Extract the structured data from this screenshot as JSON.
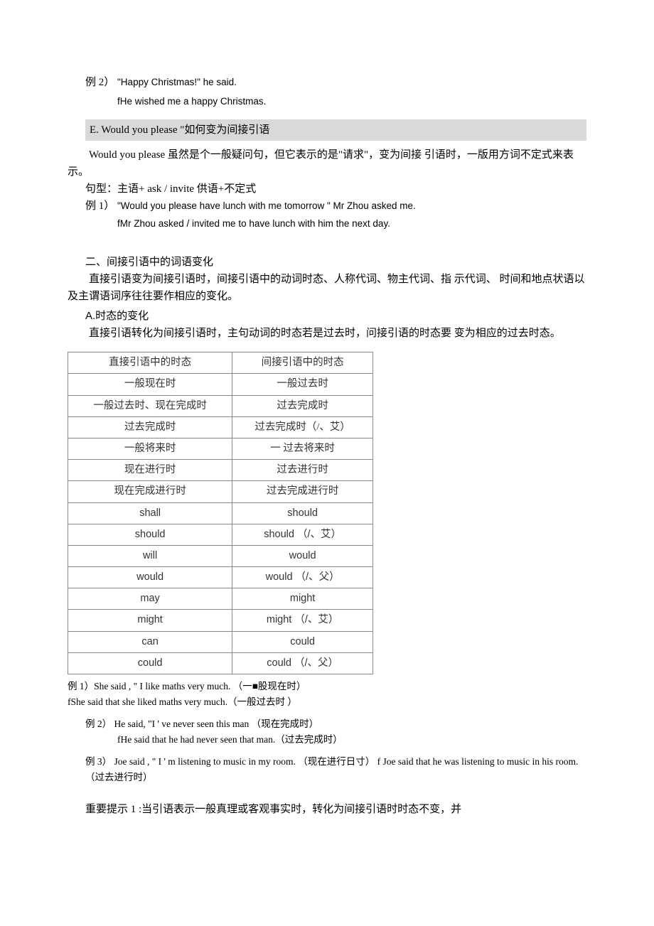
{
  "ex2_label": "例  2）",
  "ex2_en": "\"Happy Christmas!\" he said.",
  "ex2_sub": "fHe wished me a happy Christmas.",
  "sectionE": "E. Would you please  \"如何变为间接引语",
  "E_p1": "Would you please  虽然是个一般疑问句，但它表示的是\"请求\"，变为间接 引语时，一版用方词不定式来表示。",
  "E_p2": "句型：主语+ ask / invite 供语+不定式",
  "E_ex1_label": "例  1）",
  "E_ex1_en": "\"Would you please have lunch with me tomorrow \" Mr Zhou asked me.",
  "E_ex1_sub": "fMr Zhou asked / invited me to have lunch with him the next day.",
  "sec2_title": "二、间接引语中的词语变化",
  "sec2_p1": "直接引语变为间接引语时，间接引语中的动词时态、人称代词、物主代词、指 示代词、 时间和地点状语以及主谓语词序往往要作相应的变化。",
  "sec2_A": "A.时态的变化",
  "sec2_A_p": "直接引语转化为间接引语时，主句动词的时态若是过去时，问接引语的时态要 变为相应的过去时态。",
  "table_rows": [
    [
      "直接引语中的时态",
      "间接引语中的时态"
    ],
    [
      "一般现在时",
      "一般过去时"
    ],
    [
      "一般过去时、现在完成时",
      "过去完成时"
    ],
    [
      "过去完成时",
      "过去完成时（/、艾）"
    ],
    [
      "一般将来时",
      "一 过去将来时"
    ],
    [
      "现在进行时",
      "过去进行时"
    ],
    [
      "现在完成进行时",
      "过去完成进行时"
    ],
    [
      "shall",
      "should"
    ],
    [
      "should",
      "should （/、艾）"
    ],
    [
      "will",
      "would"
    ],
    [
      "would",
      "would （/、父）"
    ],
    [
      "may",
      "might"
    ],
    [
      "might",
      "might （/、艾）"
    ],
    [
      "can",
      "could"
    ],
    [
      "could",
      "could （/、父）"
    ]
  ],
  "table_arial_rows": [
    7,
    8,
    9,
    10,
    11,
    12,
    13,
    14
  ],
  "t_ex1": "例  1）She said , \" I like maths very much. （一■股现在时）",
  "t_ex1_sub": "fShe said that she liked maths very much.（一般过去时 ）",
  "t_ex2": "例  2） He said, \"I ' ve never seen this man （现在完成时）",
  "t_ex2_sub": "fHe said that he had never seen that man.（过去完成时）",
  "t_ex3": "例  3） Joe said , \" I ' m listening to music in my room. （现在进行日寸）  f Joe said that he was listening to music in his room.（过去进行时）",
  "tip1": "重要提示 1 :当引语表示一般真理或客观事实时，转化为间接引语时时态不变，并",
  "colors": {
    "text": "#000000",
    "bg": "#ffffff",
    "header_bg": "#d9d9d9",
    "table_border": "#888888",
    "table_text": "#333333"
  }
}
